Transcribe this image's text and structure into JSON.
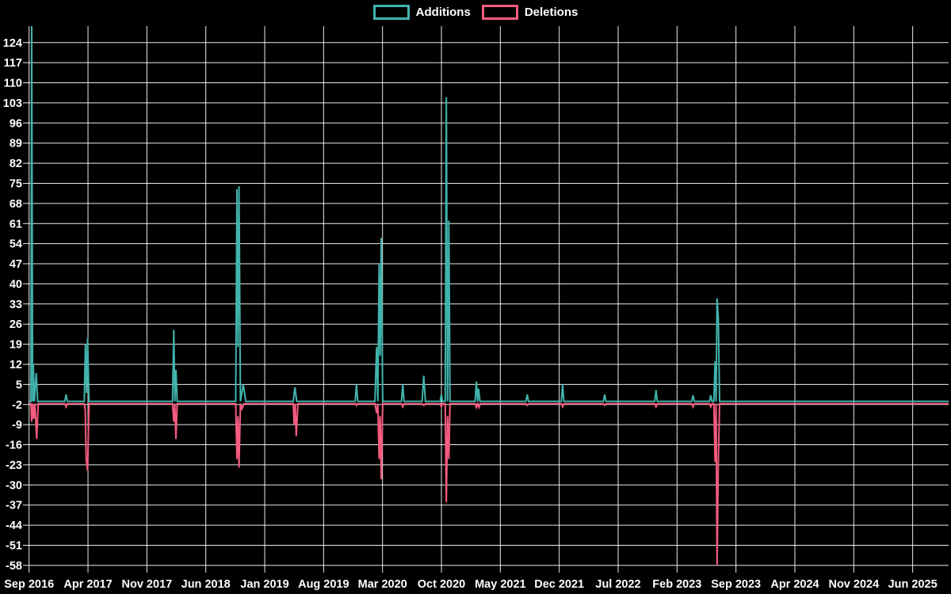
{
  "legend": {
    "items": [
      {
        "label": "Additions",
        "color": "#41b3ac"
      },
      {
        "label": "Deletions",
        "color": "#f65c80"
      }
    ]
  },
  "chart_data": {
    "type": "line",
    "title": "",
    "xlabel": "",
    "ylabel": "",
    "background_color": "#000000",
    "grid": true,
    "grid_color": "#ffffff",
    "text_color": "#ffffff",
    "legend_position": "top-center",
    "y_axis": {
      "min": -58,
      "max": 124,
      "tick_step": 7,
      "tick_values": [
        124,
        117,
        110,
        103,
        96,
        89,
        82,
        75,
        68,
        61,
        54,
        47,
        40,
        33,
        26,
        19,
        12,
        5,
        -2,
        -9,
        -16,
        -23,
        -30,
        -37,
        -44,
        -51,
        -58
      ]
    },
    "x_axis": {
      "tick_labels": [
        "Sep 2016",
        "Apr 2017",
        "Nov 2017",
        "Jun 2018",
        "Jan 2019",
        "Aug 2019",
        "Mar 2020",
        "Oct 2020",
        "May 2021",
        "Dec 2021",
        "Jul 2022",
        "Feb 2023",
        "Sep 2023",
        "Apr 2024",
        "Nov 2024",
        "Jun 2025"
      ],
      "tick_month_offsets": [
        0,
        7,
        14,
        21,
        28,
        35,
        42,
        49,
        56,
        63,
        70,
        77,
        84,
        91,
        98,
        105
      ],
      "range_months": [
        0,
        109.3
      ]
    },
    "note": "x values of points are months after Sep 2016; first Additions spike exceeds the visible axis and is clipped at the plot top (~130); flat stretches sit just above the -2 gridline",
    "series": [
      {
        "name": "Additions",
        "color": "#41b3ac",
        "baseline": -0.9,
        "points": [
          [
            0.05,
            -0.9
          ],
          [
            0.22,
            -0.9
          ],
          [
            0.31,
            130
          ],
          [
            0.42,
            -0.9
          ],
          [
            0.5,
            12
          ],
          [
            0.62,
            -0.9
          ],
          [
            0.85,
            9
          ],
          [
            1.02,
            -0.9
          ],
          [
            4.25,
            -0.9
          ],
          [
            4.4,
            1.5
          ],
          [
            4.55,
            -0.9
          ],
          [
            6.55,
            -0.9
          ],
          [
            6.7,
            19
          ],
          [
            6.82,
            2
          ],
          [
            6.95,
            21
          ],
          [
            7.12,
            -0.9
          ],
          [
            17.05,
            -0.9
          ],
          [
            17.2,
            24
          ],
          [
            17.32,
            -0.9
          ],
          [
            17.45,
            10
          ],
          [
            17.6,
            -0.9
          ],
          [
            24.55,
            -0.9
          ],
          [
            24.7,
            73
          ],
          [
            24.82,
            18
          ],
          [
            24.95,
            74
          ],
          [
            25.12,
            -0.9
          ],
          [
            25.45,
            5
          ],
          [
            25.75,
            -0.9
          ],
          [
            31.4,
            -0.9
          ],
          [
            31.6,
            4
          ],
          [
            31.8,
            -0.9
          ],
          [
            38.75,
            -0.9
          ],
          [
            38.9,
            5
          ],
          [
            39.05,
            -0.9
          ],
          [
            41.1,
            -0.9
          ],
          [
            41.3,
            18
          ],
          [
            41.45,
            -0.9
          ],
          [
            41.6,
            47
          ],
          [
            41.72,
            15
          ],
          [
            41.85,
            56
          ],
          [
            42.02,
            -0.9
          ],
          [
            44.25,
            -0.9
          ],
          [
            44.4,
            5
          ],
          [
            44.55,
            -0.9
          ],
          [
            46.7,
            -0.9
          ],
          [
            46.9,
            8
          ],
          [
            47.1,
            -0.9
          ],
          [
            48.85,
            -0.9
          ],
          [
            49.0,
            1.5
          ],
          [
            49.12,
            -0.9
          ],
          [
            49.45,
            -0.9
          ],
          [
            49.58,
            105
          ],
          [
            49.72,
            -0.9
          ],
          [
            49.88,
            62
          ],
          [
            50.02,
            -0.9
          ],
          [
            53.0,
            -0.9
          ],
          [
            53.15,
            6
          ],
          [
            53.3,
            -0.9
          ],
          [
            53.42,
            3.5
          ],
          [
            53.58,
            -0.9
          ],
          [
            59.05,
            -0.9
          ],
          [
            59.2,
            1.5
          ],
          [
            59.35,
            -0.9
          ],
          [
            63.25,
            -0.9
          ],
          [
            63.4,
            5
          ],
          [
            63.55,
            -0.9
          ],
          [
            68.25,
            -0.9
          ],
          [
            68.4,
            1.5
          ],
          [
            68.55,
            -0.9
          ],
          [
            74.35,
            -0.9
          ],
          [
            74.5,
            3
          ],
          [
            74.65,
            -0.9
          ],
          [
            78.75,
            -0.9
          ],
          [
            78.9,
            1.2
          ],
          [
            79.05,
            -0.9
          ],
          [
            80.85,
            -0.9
          ],
          [
            81.0,
            1.2
          ],
          [
            81.15,
            -0.9
          ],
          [
            81.38,
            -0.9
          ],
          [
            81.52,
            13
          ],
          [
            81.64,
            -0.9
          ],
          [
            81.75,
            35
          ],
          [
            81.9,
            28
          ],
          [
            82.05,
            -0.9
          ],
          [
            109.3,
            -0.9
          ]
        ]
      },
      {
        "name": "Deletions",
        "color": "#f65c80",
        "baseline": -1.7,
        "points": [
          [
            0.05,
            -1.7
          ],
          [
            0.22,
            -1.7
          ],
          [
            0.31,
            -8
          ],
          [
            0.44,
            -1.7
          ],
          [
            0.55,
            -7
          ],
          [
            0.7,
            -1.7
          ],
          [
            0.9,
            -14
          ],
          [
            1.08,
            -1.7
          ],
          [
            4.25,
            -1.7
          ],
          [
            4.4,
            -2.8
          ],
          [
            4.55,
            -1.7
          ],
          [
            6.55,
            -1.7
          ],
          [
            6.68,
            -4
          ],
          [
            6.78,
            -21
          ],
          [
            6.95,
            -25
          ],
          [
            7.12,
            -1.7
          ],
          [
            17.05,
            -1.7
          ],
          [
            17.2,
            -8
          ],
          [
            17.32,
            -1.7
          ],
          [
            17.45,
            -14
          ],
          [
            17.6,
            -1.7
          ],
          [
            24.55,
            -1.7
          ],
          [
            24.7,
            -21
          ],
          [
            24.82,
            -6
          ],
          [
            24.95,
            -24
          ],
          [
            25.12,
            -1.7
          ],
          [
            25.3,
            -3.5
          ],
          [
            25.55,
            -1.7
          ],
          [
            31.4,
            -1.7
          ],
          [
            31.5,
            -9
          ],
          [
            31.62,
            -1.7
          ],
          [
            31.75,
            -13
          ],
          [
            31.95,
            -1.7
          ],
          [
            38.78,
            -1.7
          ],
          [
            38.9,
            -2.3
          ],
          [
            39.02,
            -1.7
          ],
          [
            41.1,
            -1.7
          ],
          [
            41.3,
            -5
          ],
          [
            41.45,
            -1.7
          ],
          [
            41.6,
            -21
          ],
          [
            41.72,
            -6
          ],
          [
            41.85,
            -28
          ],
          [
            42.02,
            -1.7
          ],
          [
            44.25,
            -1.7
          ],
          [
            44.4,
            -2.8
          ],
          [
            44.55,
            -1.7
          ],
          [
            46.7,
            -1.7
          ],
          [
            46.9,
            -2.3
          ],
          [
            47.1,
            -1.7
          ],
          [
            48.85,
            -1.7
          ],
          [
            49.0,
            -2.8
          ],
          [
            49.12,
            -1.7
          ],
          [
            49.45,
            -1.7
          ],
          [
            49.58,
            -36
          ],
          [
            49.72,
            -6
          ],
          [
            49.88,
            -21
          ],
          [
            50.02,
            -1.7
          ],
          [
            53.0,
            -1.7
          ],
          [
            53.15,
            -3
          ],
          [
            53.3,
            -1.7
          ],
          [
            53.45,
            -3
          ],
          [
            53.6,
            -1.7
          ],
          [
            59.05,
            -1.7
          ],
          [
            59.2,
            -2.3
          ],
          [
            59.35,
            -1.7
          ],
          [
            63.25,
            -1.7
          ],
          [
            63.4,
            -2.8
          ],
          [
            63.55,
            -1.7
          ],
          [
            68.25,
            -1.7
          ],
          [
            68.4,
            -2.3
          ],
          [
            68.55,
            -1.7
          ],
          [
            74.35,
            -1.7
          ],
          [
            74.5,
            -2.8
          ],
          [
            74.65,
            -1.7
          ],
          [
            78.75,
            -1.7
          ],
          [
            78.9,
            -2.8
          ],
          [
            79.05,
            -1.7
          ],
          [
            80.85,
            -1.7
          ],
          [
            81.0,
            -2.8
          ],
          [
            81.15,
            -1.7
          ],
          [
            81.38,
            -1.7
          ],
          [
            81.52,
            -22
          ],
          [
            81.64,
            -1.7
          ],
          [
            81.75,
            -58
          ],
          [
            81.9,
            -22
          ],
          [
            82.05,
            -1.7
          ],
          [
            109.3,
            -1.7
          ]
        ]
      }
    ]
  }
}
